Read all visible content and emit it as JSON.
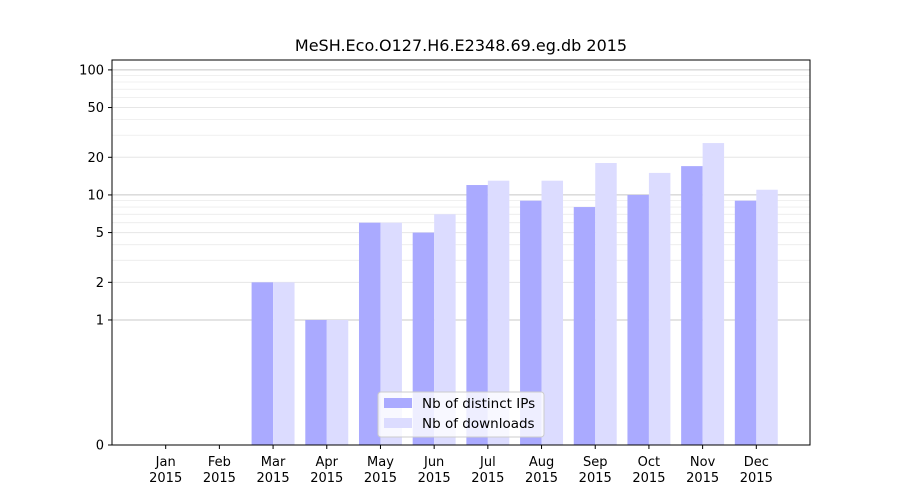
{
  "chart_data": {
    "type": "bar",
    "title": "MeSH.Eco.O127.H6.E2348.69.eg.db 2015",
    "xlabel": "",
    "ylabel": "",
    "y_scale": "symlog",
    "ylim": [
      0,
      120
    ],
    "y_ticks": [
      0,
      1,
      2,
      5,
      10,
      20,
      50,
      100
    ],
    "categories": [
      [
        "Jan",
        "2015"
      ],
      [
        "Feb",
        "2015"
      ],
      [
        "Mar",
        "2015"
      ],
      [
        "Apr",
        "2015"
      ],
      [
        "May",
        "2015"
      ],
      [
        "Jun",
        "2015"
      ],
      [
        "Jul",
        "2015"
      ],
      [
        "Aug",
        "2015"
      ],
      [
        "Sep",
        "2015"
      ],
      [
        "Oct",
        "2015"
      ],
      [
        "Nov",
        "2015"
      ],
      [
        "Dec",
        "2015"
      ]
    ],
    "series": [
      {
        "name": "Nb of distinct IPs",
        "color": "#aaaaff",
        "values": [
          0,
          0,
          2,
          1,
          6,
          5,
          12,
          9,
          8,
          10,
          17,
          9
        ]
      },
      {
        "name": "Nb of downloads",
        "color": "#dcdcff",
        "values": [
          0,
          0,
          2,
          1,
          6,
          7,
          13,
          13,
          18,
          15,
          26,
          11
        ]
      }
    ],
    "grid": true,
    "legend_position": "lower-center"
  }
}
